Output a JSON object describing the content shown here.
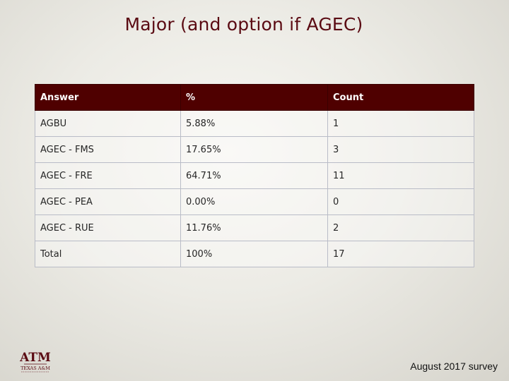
{
  "title": "Major (and option if AGEC)",
  "table": {
    "headers": [
      "Answer",
      "%",
      "Count"
    ],
    "rows": [
      [
        "AGBU",
        "5.88%",
        "1"
      ],
      [
        "AGEC - FMS",
        "17.65%",
        "3"
      ],
      [
        "AGEC - FRE",
        "64.71%",
        "11"
      ],
      [
        "AGEC - PEA",
        "0.00%",
        "0"
      ],
      [
        "AGEC - RUE",
        "11.76%",
        "2"
      ],
      [
        "Total",
        "100%",
        "17"
      ]
    ]
  },
  "logo": {
    "mark": "ATM",
    "text": "TEXAS A&M"
  },
  "footer": "August 2017 survey",
  "colors": {
    "title": "#5a0a12",
    "header_bg": "#4f0000",
    "header_text": "#ffffff"
  }
}
